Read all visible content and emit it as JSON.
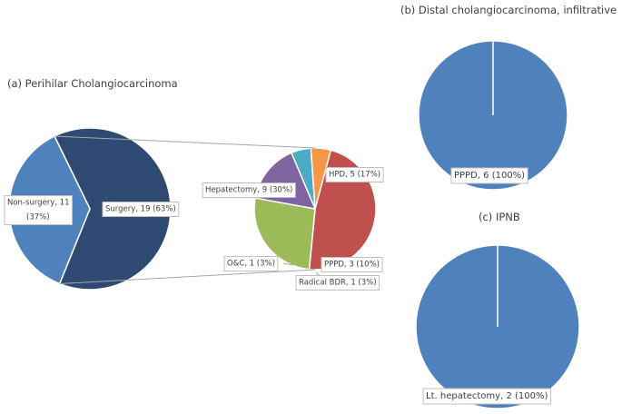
{
  "panels": {
    "a_title": "(a) Perihilar Cholangiocarcinoma",
    "b_title": "(b) Distal cholangiocarcinoma, infiltrative",
    "c_title": "(c) IPNB"
  },
  "chart_data": [
    {
      "type": "pie",
      "id": "a-main",
      "title": "(a) Perihilar Cholangiocarcinoma",
      "slices": [
        {
          "label": "Surgery, 19 (63%)",
          "value": 19,
          "color": "#2e4a73"
        },
        {
          "label": "Non-surgery, 11 (37%)",
          "value": 11,
          "color": "#4f81bd"
        }
      ]
    },
    {
      "type": "pie",
      "id": "a-sub",
      "title": "",
      "slices": [
        {
          "label": "Hepatectomy, 9 (30%)",
          "value": 9,
          "color": "#c0504d"
        },
        {
          "label": "HPD, 5 (17%)",
          "value": 5,
          "color": "#9bbb59"
        },
        {
          "label": "PPPD, 3 (10%)",
          "value": 3,
          "color": "#8064a2"
        },
        {
          "label": "Radical BDR, 1 (3%)",
          "value": 1,
          "color": "#4bacc6"
        },
        {
          "label": "O&C, 1 (3%)",
          "value": 1,
          "color": "#f79646"
        }
      ]
    },
    {
      "type": "pie",
      "id": "b",
      "title": "(b) Distal cholangiocarcinoma, infiltrative",
      "slices": [
        {
          "label": "PPPD, 6 (100%)",
          "value": 6,
          "color": "#4f81bd"
        }
      ]
    },
    {
      "type": "pie",
      "id": "c",
      "title": "(c) IPNB",
      "slices": [
        {
          "label": "Lt. hepatectomy, 2 (100%)",
          "value": 2,
          "color": "#4f81bd"
        }
      ]
    }
  ]
}
